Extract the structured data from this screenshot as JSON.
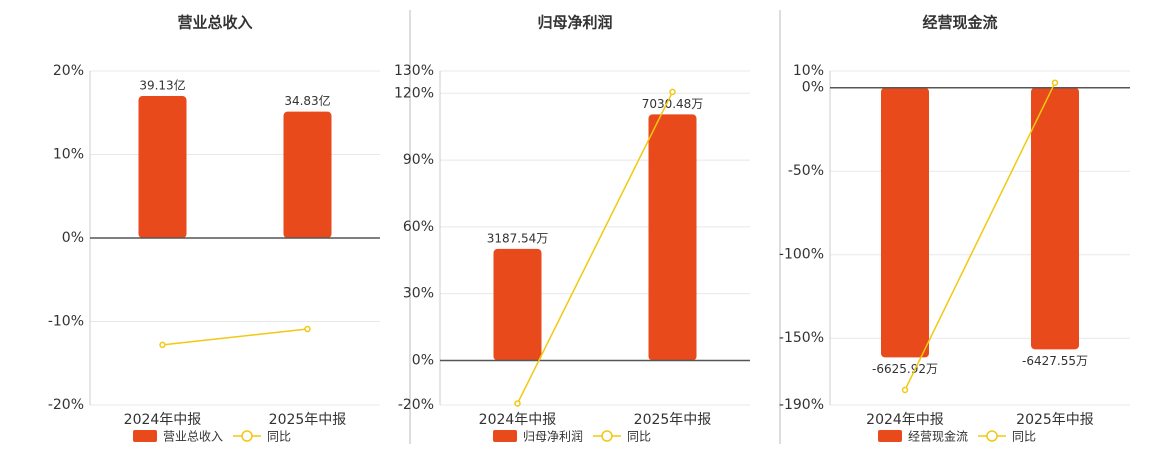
{
  "chart_data": [
    {
      "type": "bar",
      "title": "营业总收入",
      "categories": [
        "2024年中报",
        "2025年中报"
      ],
      "series": [
        {
          "name": "营业总收入",
          "type": "bar",
          "color": "#e84a1b",
          "values": [
            39.13,
            34.83
          ],
          "value_labels": [
            "39.13亿",
            "34.83亿"
          ]
        },
        {
          "name": "同比",
          "type": "line",
          "color": "#f2c811",
          "values": [
            -12.8,
            -10.9
          ]
        }
      ],
      "ylim": [
        -20,
        20
      ],
      "yticks": [
        {
          "value": -20,
          "label": "-20%"
        },
        {
          "value": -10,
          "label": "-10%"
        },
        {
          "value": 0,
          "label": "0%"
        },
        {
          "value": 10,
          "label": "10%"
        },
        {
          "value": 20,
          "label": "20%"
        }
      ]
    },
    {
      "type": "bar",
      "title": "归母净利润",
      "categories": [
        "2024年中报",
        "2025年中报"
      ],
      "series": [
        {
          "name": "归母净利润",
          "type": "bar",
          "color": "#e84a1b",
          "values": [
            3187.54,
            7030.48
          ],
          "value_labels": [
            "3187.54万",
            "7030.48万"
          ]
        },
        {
          "name": "同比",
          "type": "line",
          "color": "#f2c811",
          "values": [
            -19.3,
            120.6
          ]
        }
      ],
      "ylim": [
        -20,
        130
      ],
      "yticks": [
        {
          "value": -20,
          "label": "-20%"
        },
        {
          "value": 0,
          "label": "0%"
        },
        {
          "value": 30,
          "label": "30%"
        },
        {
          "value": 60,
          "label": "60%"
        },
        {
          "value": 90,
          "label": "90%"
        },
        {
          "value": 120,
          "label": "120%"
        },
        {
          "value": 130,
          "label": "130%"
        }
      ]
    },
    {
      "type": "bar",
      "title": "经营现金流",
      "categories": [
        "2024年中报",
        "2025年中报"
      ],
      "series": [
        {
          "name": "经营现金流",
          "type": "bar",
          "color": "#e84a1b",
          "values": [
            -6625.92,
            -6427.55
          ],
          "value_labels": [
            "-6625.92万",
            "-6427.55万"
          ]
        },
        {
          "name": "同比",
          "type": "line",
          "color": "#f2c811",
          "values": [
            -181,
            3
          ]
        }
      ],
      "ylim": [
        -190,
        10
      ],
      "yticks": [
        {
          "value": -190,
          "label": "-190%"
        },
        {
          "value": -150,
          "label": "-150%"
        },
        {
          "value": -100,
          "label": "-100%"
        },
        {
          "value": -50,
          "label": "-50%"
        },
        {
          "value": 0,
          "label": "0%"
        },
        {
          "value": 10,
          "label": "10%"
        }
      ]
    }
  ]
}
